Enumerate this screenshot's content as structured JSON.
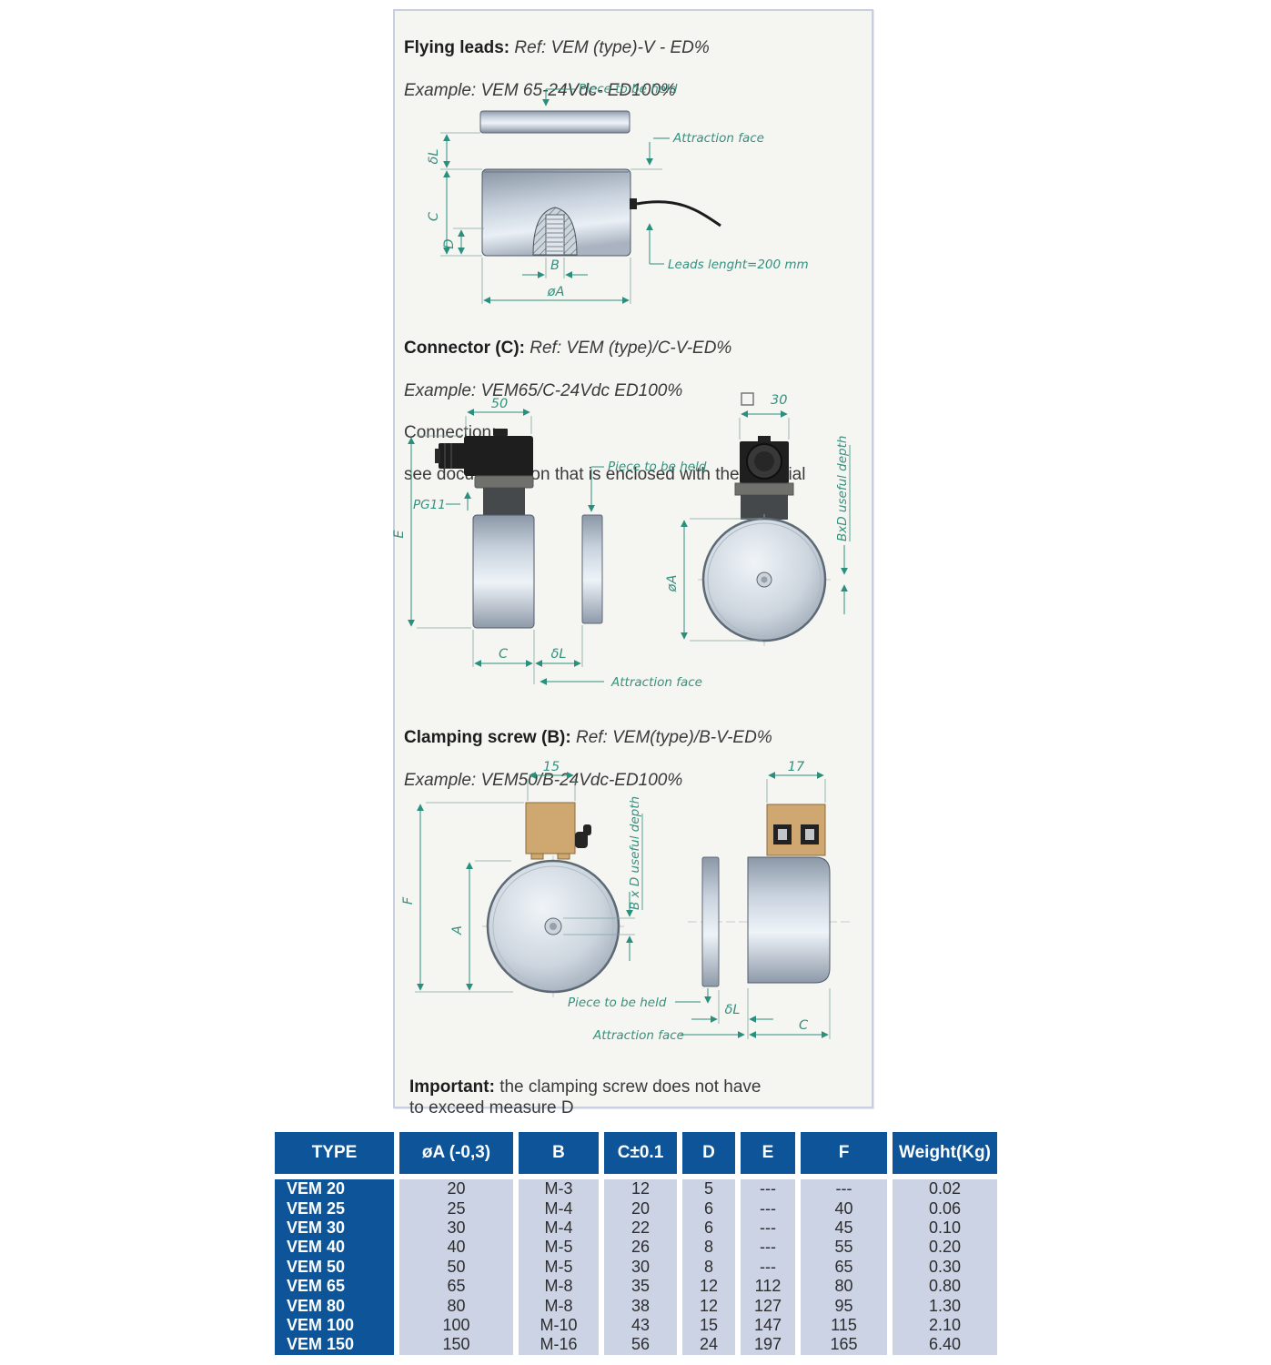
{
  "panel": {
    "flying": {
      "heading": "Flying leads:",
      "ref": "Ref: VEM (type)-V - ED%",
      "example": "Example: VEM 65-24Vdc- ED100%"
    },
    "connector": {
      "heading": "Connector (C):",
      "ref": "Ref: VEM (type)/C-V-ED%",
      "example": "Example: VEM65/C-24Vdc ED100%",
      "connection_label": "Connection:",
      "connection_note": "see documentation that is enclosed with the material"
    },
    "clamping": {
      "heading": "Clamping screw (B):",
      "ref": "Ref: VEM(type)/B-V-ED%",
      "example": "Example: VEM50/B-24Vdc-ED100%"
    },
    "important": {
      "heading": "Important:",
      "text": " the clamping screw does not have to exceed measure D"
    },
    "drawing1": {
      "piece": "Piece to be held",
      "attraction": "Attraction face",
      "leads": "Leads lenght=200 mm",
      "dim_dl": "δL",
      "dim_c": "C",
      "dim_d": "D",
      "dim_b": "B",
      "dim_oa": "øA"
    },
    "drawing2": {
      "dim_50": "50",
      "pg11": "PG11",
      "dim_e": "E",
      "dim_c": "C",
      "dim_dl": "δL",
      "piece": "Piece to be held",
      "attraction": "Attraction face",
      "dim_30": "30",
      "bxd": "BxD useful depth",
      "dim_oa": "øA"
    },
    "drawing3": {
      "dim_15": "15",
      "dim_17": "17",
      "dim_f": "F",
      "dim_a": "A",
      "bxd": "B x D useful depth",
      "piece": "Piece to be held",
      "attraction": "Attraction face",
      "dim_dl": "δL",
      "dim_c": "C"
    }
  },
  "table": {
    "headers": [
      "TYPE",
      "øA (-0,3)",
      "B",
      "C±0.1",
      "D",
      "E",
      "F",
      "Weight(Kg)"
    ],
    "rows": [
      [
        "VEM 20",
        "20",
        "M-3",
        "12",
        "5",
        "---",
        "---",
        "0.02"
      ],
      [
        "VEM 25",
        "25",
        "M-4",
        "20",
        "6",
        "---",
        "40",
        "0.06"
      ],
      [
        "VEM 30",
        "30",
        "M-4",
        "22",
        "6",
        "---",
        "45",
        "0.10"
      ],
      [
        "VEM 40",
        "40",
        "M-5",
        "26",
        "8",
        "---",
        "55",
        "0.20"
      ],
      [
        "VEM 50",
        "50",
        "M-5",
        "30",
        "8",
        "---",
        "65",
        "0.30"
      ],
      [
        "VEM 65",
        "65",
        "M-8",
        "35",
        "12",
        "112",
        "80",
        "0.80"
      ],
      [
        "VEM 80",
        "80",
        "M-8",
        "38",
        "12",
        "127",
        "95",
        "1.30"
      ],
      [
        "VEM 100",
        "100",
        "M-10",
        "43",
        "15",
        "147",
        "115",
        "2.10"
      ],
      [
        "VEM 150",
        "150",
        "M-16",
        "56",
        "24",
        "197",
        "165",
        "6.40"
      ]
    ]
  },
  "colors": {
    "table_header_bg": "#0d5598",
    "table_cell_bg": "#ccd3e5",
    "dimension_teal": "#2a8f7c",
    "panel_border": "#c9cfdf",
    "panel_bg": "#f5f5f2",
    "terminal_box_tan": "#cfa871",
    "connector_black": "#1e1e1e"
  }
}
